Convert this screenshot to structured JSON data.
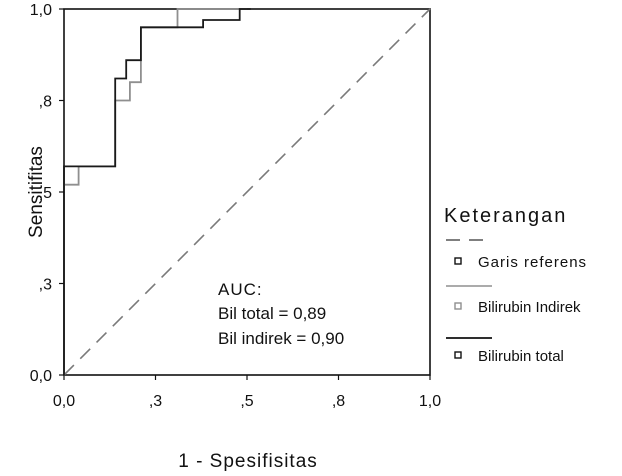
{
  "chart_data": {
    "type": "line",
    "xlabel": "1 - Spesifisitas",
    "ylabel": "Sensitifitas",
    "xlim": [
      0,
      1
    ],
    "ylim": [
      0,
      1
    ],
    "x_ticks": [
      {
        "value": 0.0,
        "label": "0,0"
      },
      {
        "value": 0.25,
        "label": ",3"
      },
      {
        "value": 0.5,
        "label": ",5"
      },
      {
        "value": 0.75,
        "label": ",8"
      },
      {
        "value": 1.0,
        "label": "1,0"
      }
    ],
    "y_ticks": [
      {
        "value": 0.0,
        "label": "0,0"
      },
      {
        "value": 0.25,
        "label": ",3"
      },
      {
        "value": 0.5,
        "label": ",5"
      },
      {
        "value": 0.75,
        "label": ",8"
      },
      {
        "value": 1.0,
        "label": "1,0"
      }
    ],
    "grid": false,
    "legend": {
      "title": "Keterangan",
      "position": "right",
      "entries": [
        "Garis referens",
        "Bilirubin Indirek",
        "Bilirubin total"
      ]
    },
    "annotation": {
      "lines": [
        "AUC:",
        "Bil total = 0,89",
        "Bil indirek = 0,90"
      ]
    },
    "series": [
      {
        "name": "Garis referens",
        "color": "#7a7a7a",
        "dash": true,
        "x": [
          0,
          1
        ],
        "y": [
          0,
          1
        ]
      },
      {
        "name": "Bilirubin Indirek",
        "color": "#8f8f8f",
        "dash": false,
        "x": [
          0,
          0,
          0.04,
          0.04,
          0.14,
          0.14,
          0.18,
          0.18,
          0.21,
          0.21,
          0.31,
          0.31,
          0.38,
          0.38,
          0.5
        ],
        "y": [
          0,
          0.52,
          0.52,
          0.57,
          0.57,
          0.75,
          0.75,
          0.8,
          0.8,
          0.95,
          0.95,
          1.0,
          1.0,
          1.0,
          1.0
        ]
      },
      {
        "name": "Bilirubin total",
        "color": "#1a1a1a",
        "dash": false,
        "x": [
          0,
          0,
          0.14,
          0.14,
          0.17,
          0.17,
          0.21,
          0.21,
          0.38,
          0.38,
          0.48,
          0.48,
          0.51
        ],
        "y": [
          0,
          0.57,
          0.57,
          0.81,
          0.81,
          0.86,
          0.86,
          0.95,
          0.95,
          0.97,
          0.97,
          1.0,
          1.0
        ]
      }
    ]
  }
}
